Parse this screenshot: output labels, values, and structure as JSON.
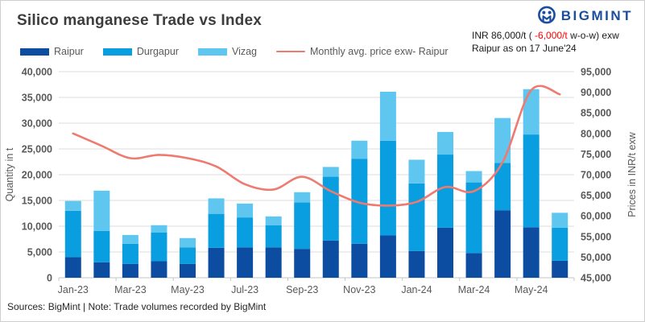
{
  "header": {
    "title": "Silico manganese Trade vs Index",
    "logo_text": "BIGMINT",
    "logo_icon": "bigmint-owl-icon",
    "annotation": {
      "prefix": "INR 86,000/t (",
      "negative": " -6,000/t",
      "suffix": " w-o-w) exw",
      "line2": "Raipur as on 17 June'24"
    }
  },
  "footer": {
    "text": "Sources: BigMint | Note: Trade volumes recorded by BigMint"
  },
  "colors": {
    "navy_brand": "#1c4da0",
    "annotation_red": "#ff0000",
    "axis_text": "#595959",
    "title_text": "#3d3d3d",
    "gridline": "#dcdcdc",
    "axis_line": "#c4c4c4"
  },
  "chart_data": {
    "type": "bar",
    "subtype": "stacked bars + line on secondary axis",
    "categories": [
      "Jan-23",
      "Feb-23",
      "Mar-23",
      "Apr-23",
      "May-23",
      "Jun-23",
      "Jul-23",
      "Aug-23",
      "Sep-23",
      "Oct-23",
      "Nov-23",
      "Dec-23",
      "Jan-24",
      "Feb-24",
      "Mar-24",
      "Apr-24",
      "May-24",
      "Jun-24"
    ],
    "x_tick_labels": [
      "Jan-23",
      "Mar-23",
      "May-23",
      "Jul-23",
      "Sep-23",
      "Nov-23",
      "Jan-24",
      "Mar-24",
      "May-24"
    ],
    "series": [
      {
        "name": "Raipur",
        "type": "bar",
        "axis": "left",
        "color": "#0d4da1",
        "values": [
          4000,
          3000,
          2700,
          3200,
          2700,
          5800,
          5900,
          5900,
          5600,
          7200,
          6600,
          8200,
          5200,
          9700,
          4800,
          13100,
          9800,
          3300
        ]
      },
      {
        "name": "Durgapur",
        "type": "bar",
        "axis": "left",
        "color": "#089ee0",
        "values": [
          9000,
          6100,
          3900,
          5600,
          3200,
          6600,
          5800,
          4300,
          9000,
          12400,
          16500,
          18400,
          13100,
          14200,
          13700,
          9200,
          18000,
          6400
        ]
      },
      {
        "name": "Vizag",
        "type": "bar",
        "axis": "left",
        "color": "#5fc6f0",
        "values": [
          1900,
          7800,
          1700,
          1400,
          1800,
          3000,
          2700,
          1700,
          2000,
          1900,
          3500,
          9500,
          4600,
          4400,
          2200,
          8700,
          8800,
          2900
        ]
      },
      {
        "name": "Monthly avg. price exw- Raipur",
        "type": "line",
        "axis": "right",
        "color": "#ee7a70",
        "values": [
          80000,
          77000,
          74000,
          74800,
          74000,
          72000,
          67700,
          66400,
          69500,
          66000,
          63200,
          62500,
          63400,
          67000,
          66000,
          73000,
          90500,
          89500
        ]
      }
    ],
    "left_axis": {
      "label": "Quantity in t",
      "min": 0,
      "max": 40000,
      "step": 5000
    },
    "right_axis": {
      "label": "Prices in INR/t exw",
      "min": 45000,
      "max": 95000,
      "step": 5000
    },
    "grid": true,
    "legend_position": "top-left"
  }
}
